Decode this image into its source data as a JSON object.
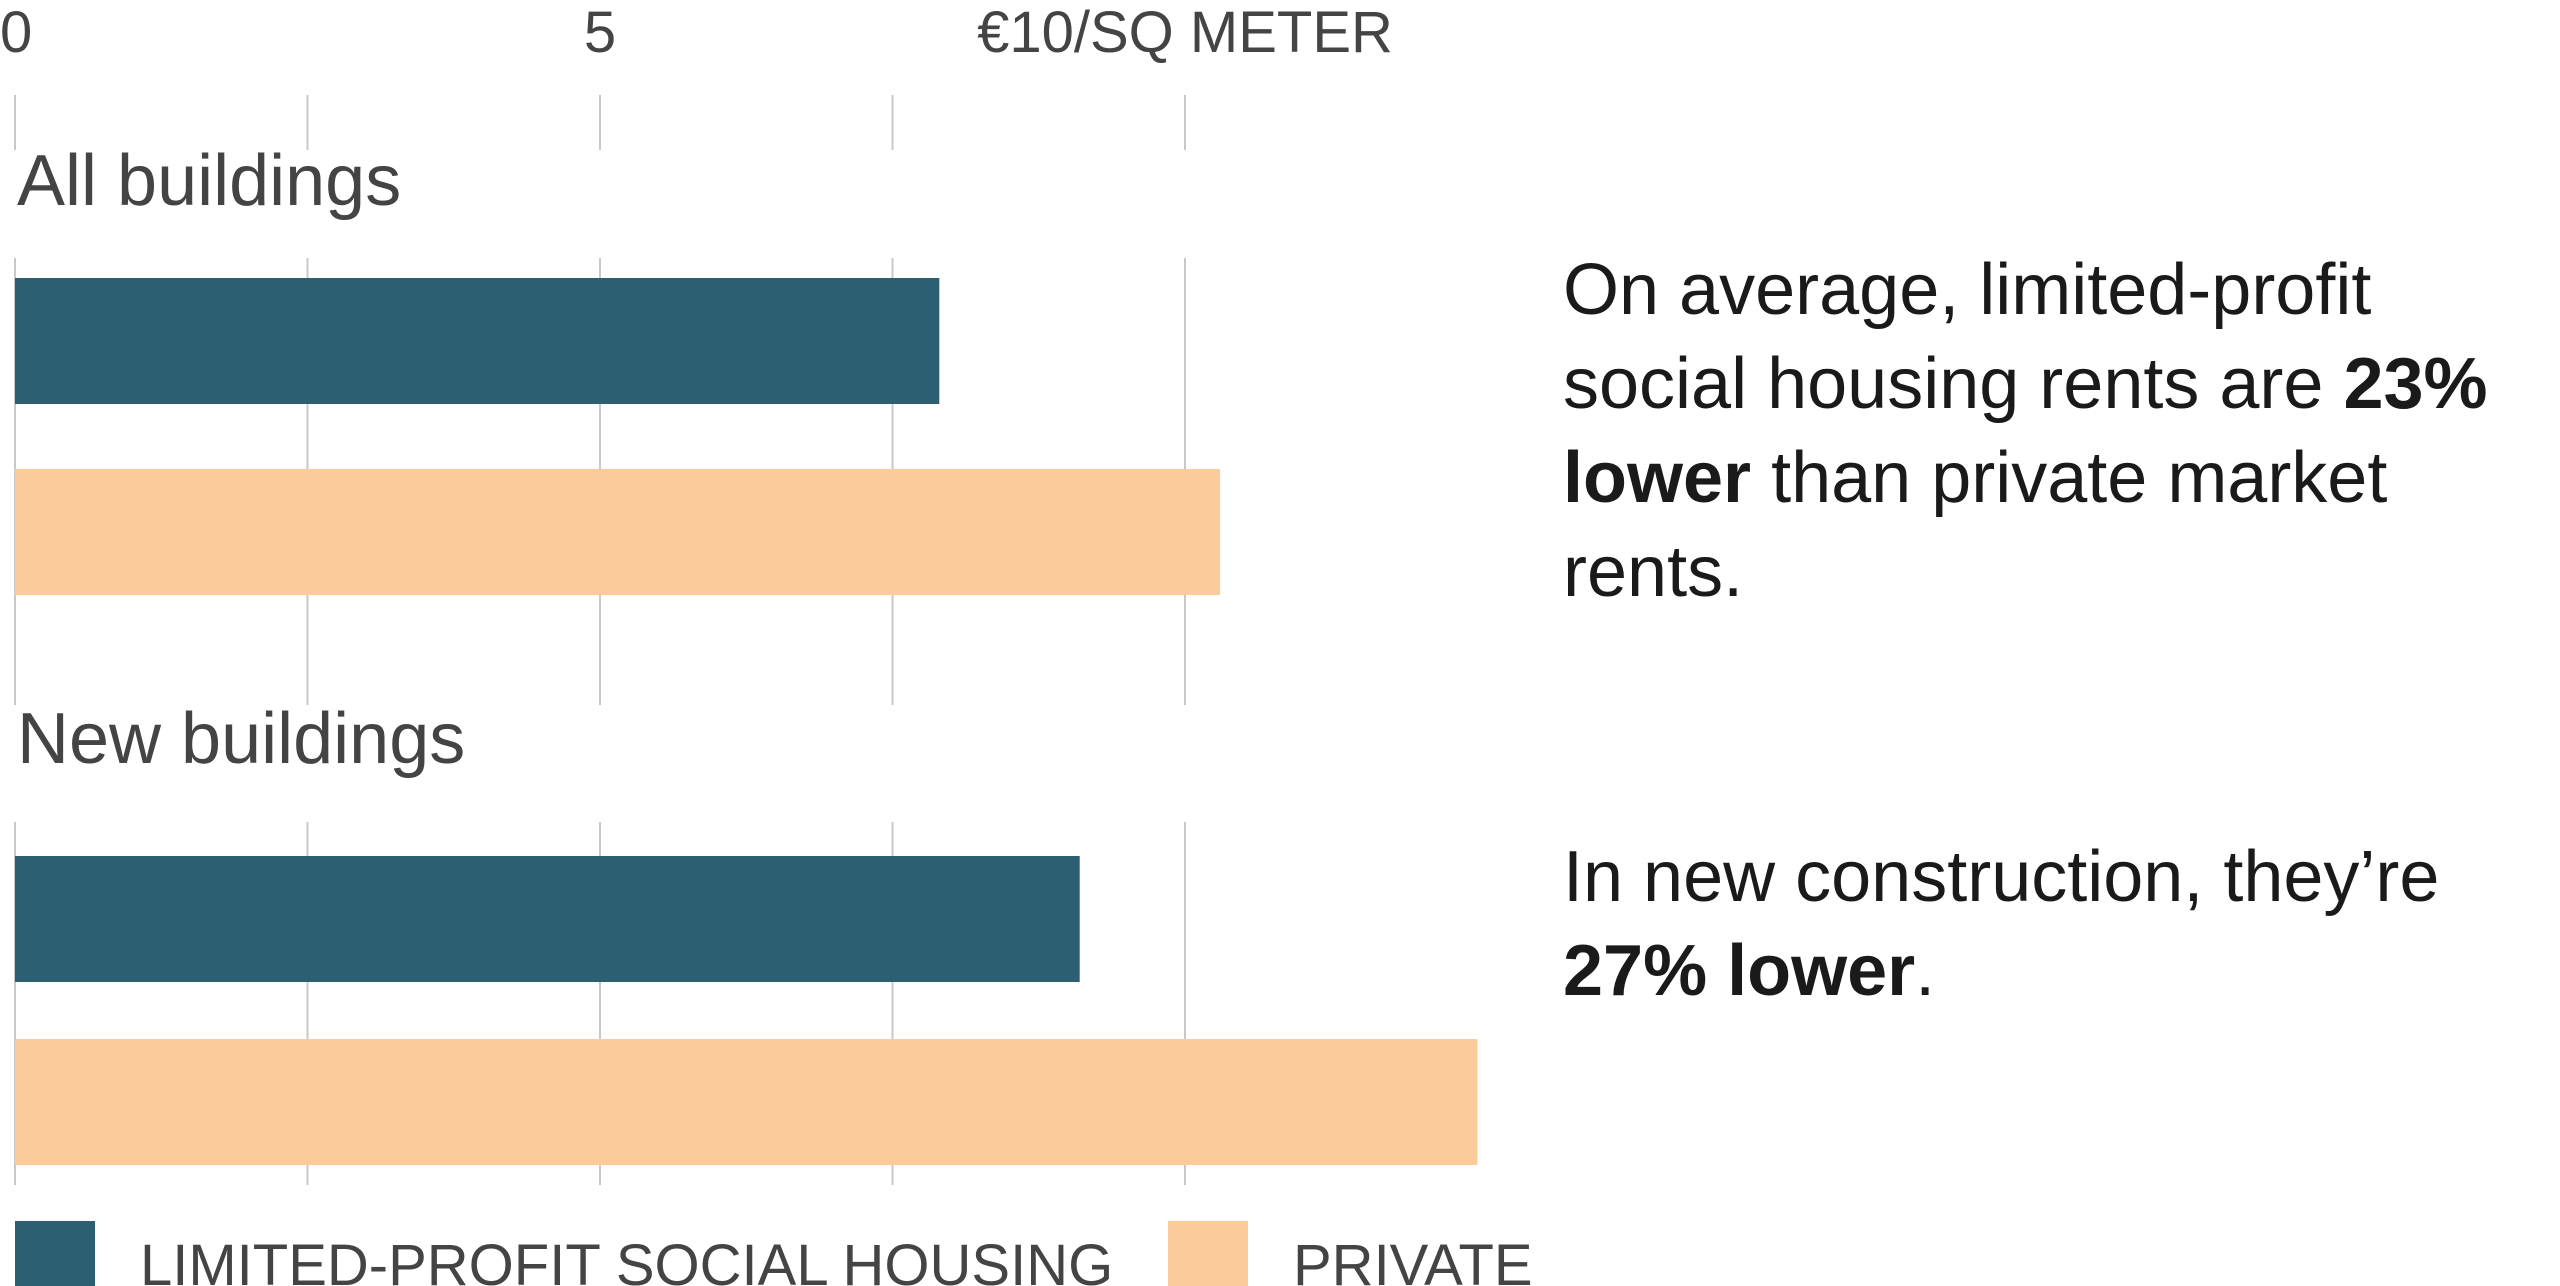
{
  "chart_data": {
    "type": "bar",
    "orientation": "horizontal",
    "unit_label": "€10/SQ METER",
    "x_ticks": [
      {
        "value": 0,
        "label": "0"
      },
      {
        "value": 5,
        "label": "5"
      },
      {
        "value": 10,
        "label": "€10/SQ METER"
      }
    ],
    "gridline_values": [
      0,
      2.5,
      5,
      7.5,
      10
    ],
    "xlim": [
      0,
      12.5
    ],
    "categories": [
      "All buildings",
      "New buildings"
    ],
    "series": [
      {
        "name": "LIMITED-PROFIT SOCIAL HOUSING",
        "color": "#2d5f72",
        "values": [
          7.9,
          9.1
        ]
      },
      {
        "name": "PRIVATE RENTALS",
        "color": "#fccb9c",
        "values": [
          10.3,
          12.5
        ]
      }
    ],
    "legend_position": "bottom"
  },
  "annotations": [
    {
      "pre": "On average, limited-profit social housing rents are ",
      "bold": "23% lower",
      "post": " than private market rents."
    },
    {
      "pre": "In new construction, they’re ",
      "bold": "27% lower",
      "post": "."
    }
  ],
  "colors": {
    "text": "#444444",
    "grid": "#c8c8c8",
    "annotation": "#1a1a1a"
  }
}
